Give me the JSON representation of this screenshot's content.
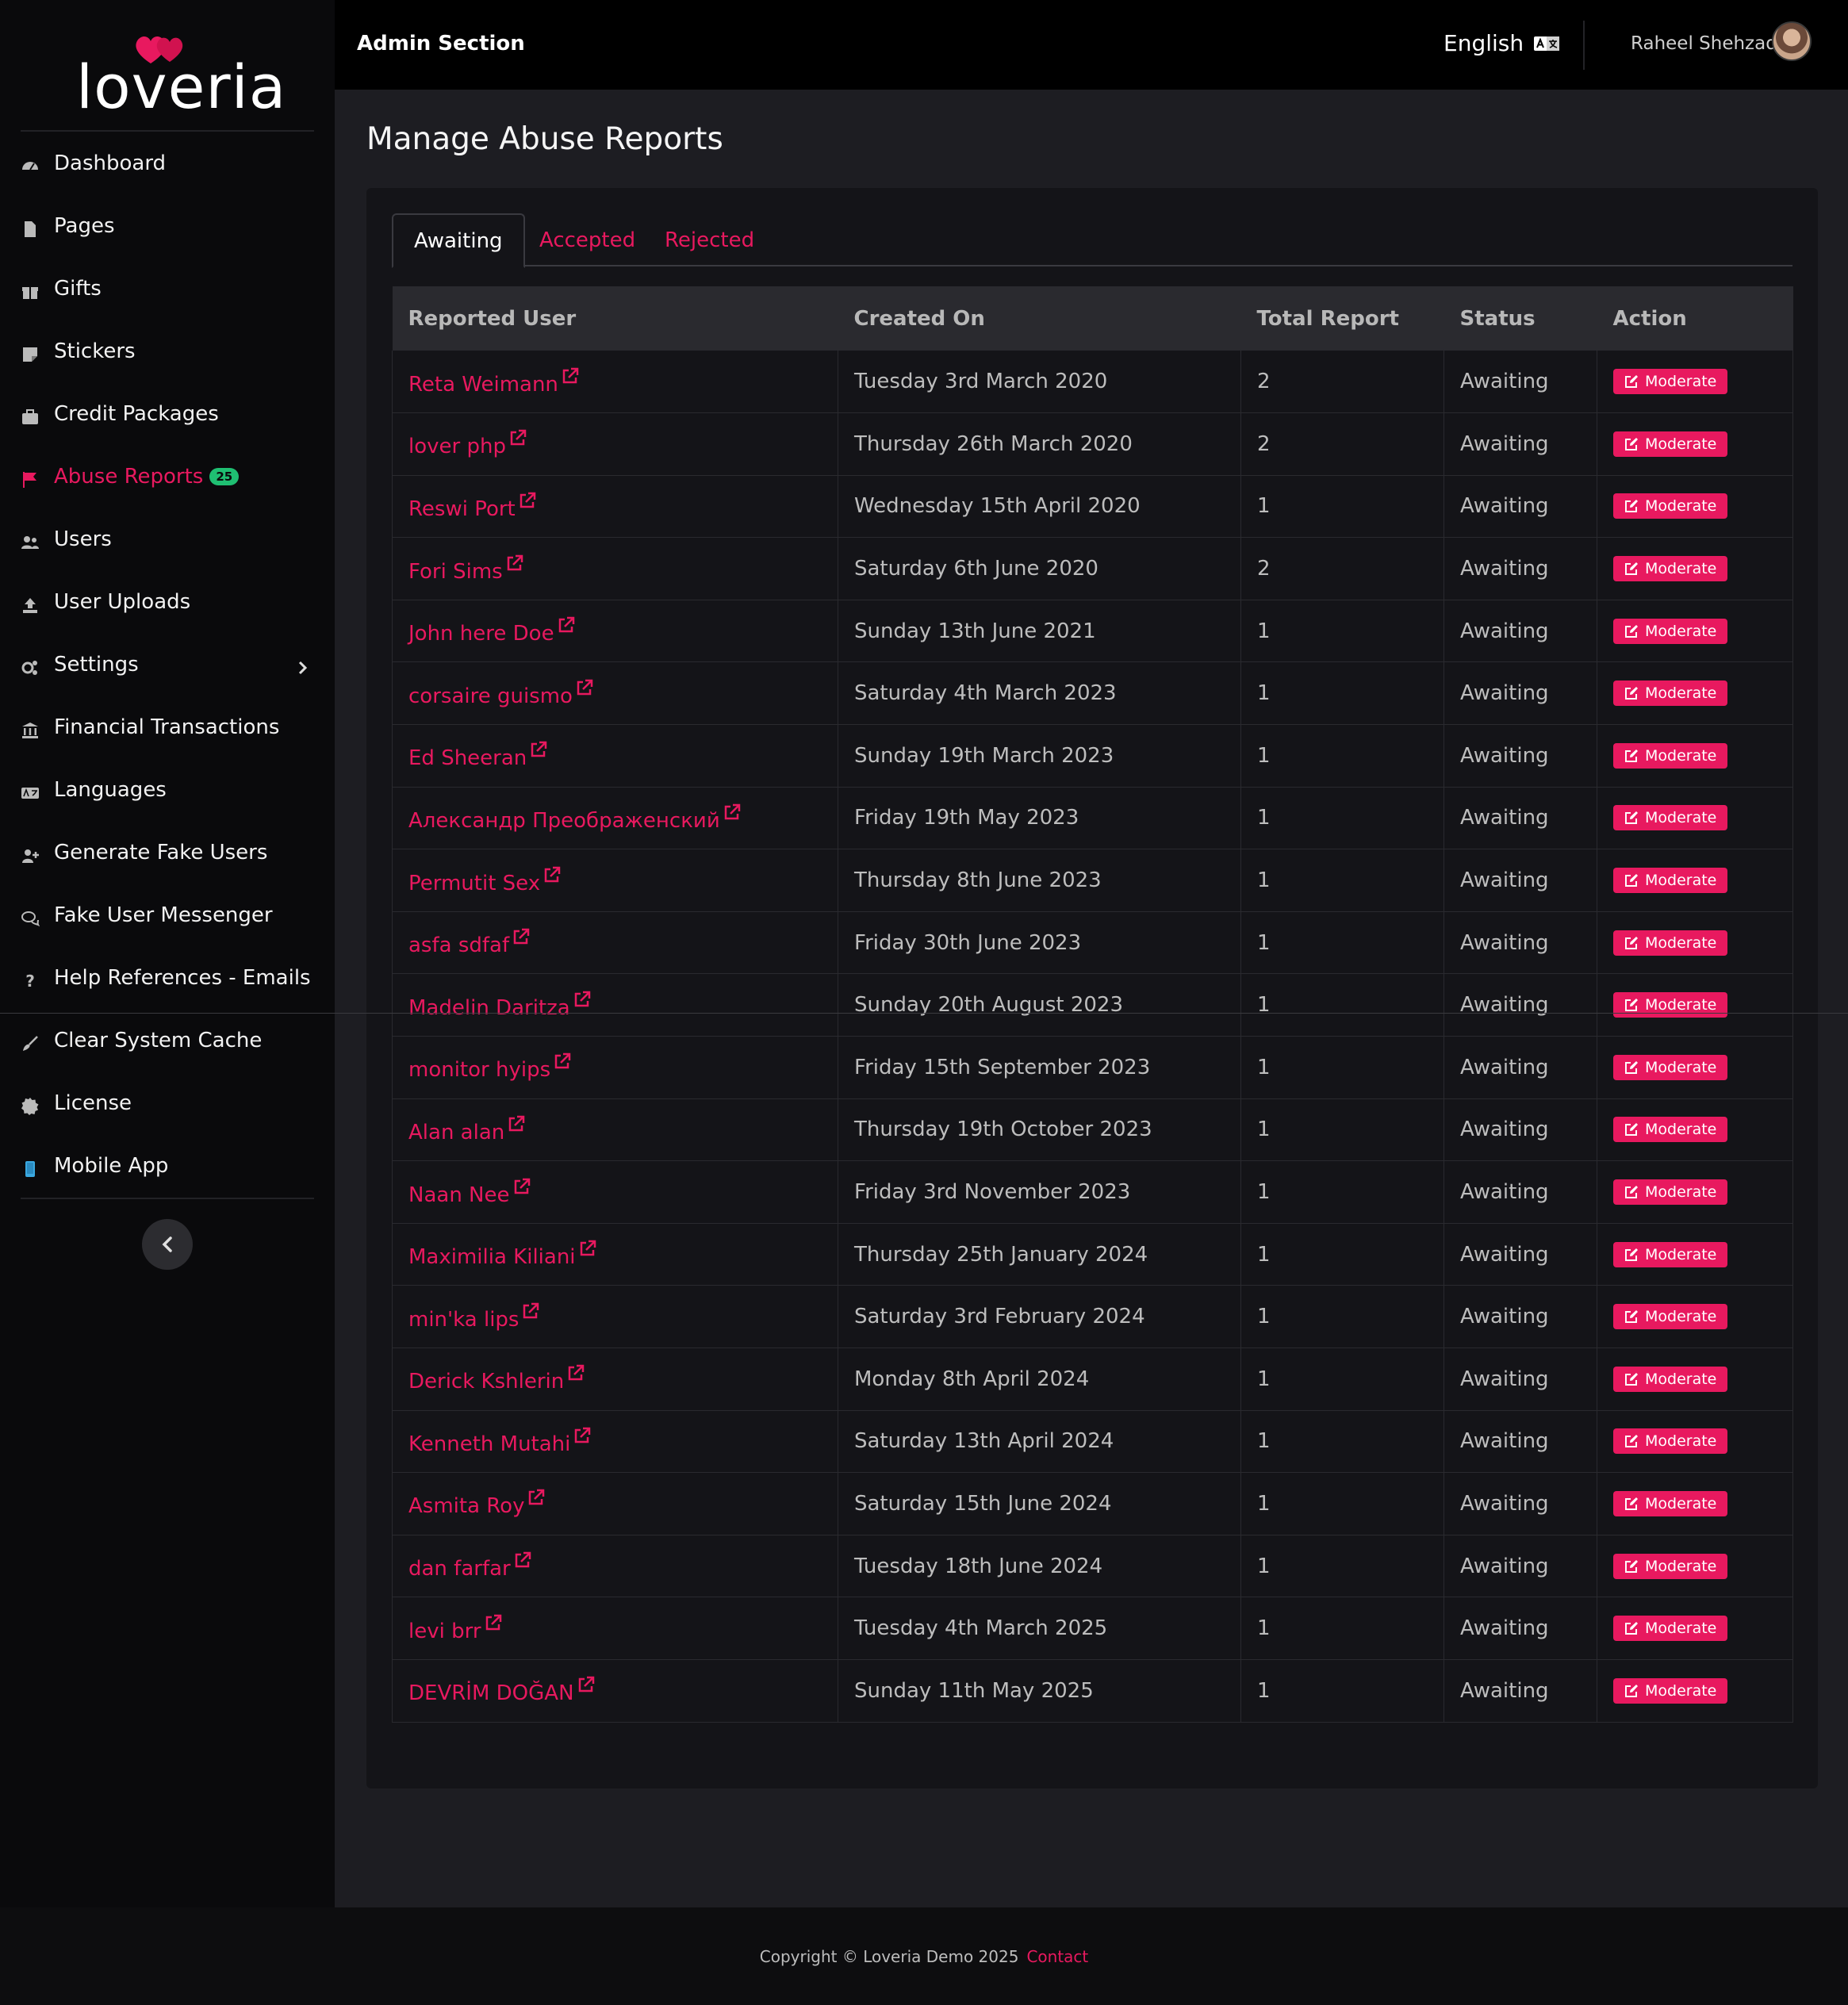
{
  "brand": {
    "name": "loveria",
    "accent": "#e8195f"
  },
  "sidebar": {
    "items": [
      {
        "label": "Dashboard",
        "icon": "dashboard-icon"
      },
      {
        "label": "Pages",
        "icon": "file-icon"
      },
      {
        "label": "Gifts",
        "icon": "gift-icon"
      },
      {
        "label": "Stickers",
        "icon": "sticker-icon"
      },
      {
        "label": "Credit Packages",
        "icon": "briefcase-icon"
      },
      {
        "label": "Abuse Reports",
        "icon": "flag-icon",
        "badge": "25",
        "active": true
      },
      {
        "label": "Users",
        "icon": "users-icon"
      },
      {
        "label": "User Uploads",
        "icon": "upload-icon"
      },
      {
        "label": "Settings",
        "icon": "cogs-icon"
      },
      {
        "label": "Financial Transactions",
        "icon": "bank-icon"
      },
      {
        "label": "Languages",
        "icon": "language-icon"
      },
      {
        "label": "Generate Fake Users",
        "icon": "user-plus-icon"
      },
      {
        "label": "Fake User Messenger",
        "icon": "chat-icon"
      },
      {
        "label": "Help References - Emails",
        "icon": "question-icon"
      },
      {
        "label": "Clear System Cache",
        "icon": "broom-icon"
      },
      {
        "label": "License",
        "icon": "certificate-icon"
      },
      {
        "label": "Mobile App",
        "icon": "mobile-icon"
      }
    ]
  },
  "topbar": {
    "section_title": "Admin Section",
    "language": "English",
    "user_name": "Raheel Shehzad"
  },
  "main": {
    "page_title": "Manage Abuse Reports",
    "tabs": [
      {
        "label": "Awaiting",
        "active": true
      },
      {
        "label": "Accepted"
      },
      {
        "label": "Rejected"
      }
    ],
    "table": {
      "headers": [
        "Reported User",
        "Created On",
        "Total Report",
        "Status",
        "Action"
      ],
      "action_label": "Moderate",
      "rows": [
        {
          "user": "Reta Weimann",
          "created": "Tuesday 3rd March 2020",
          "total": "2",
          "status": "Awaiting"
        },
        {
          "user": "lover php",
          "created": "Thursday 26th March 2020",
          "total": "2",
          "status": "Awaiting"
        },
        {
          "user": "Reswi Port",
          "created": "Wednesday 15th April 2020",
          "total": "1",
          "status": "Awaiting"
        },
        {
          "user": "Fori Sims",
          "created": "Saturday 6th June 2020",
          "total": "2",
          "status": "Awaiting"
        },
        {
          "user": "John here Doe",
          "created": "Sunday 13th June 2021",
          "total": "1",
          "status": "Awaiting"
        },
        {
          "user": "corsaire guismo",
          "created": "Saturday 4th March 2023",
          "total": "1",
          "status": "Awaiting"
        },
        {
          "user": "Ed Sheeran",
          "created": "Sunday 19th March 2023",
          "total": "1",
          "status": "Awaiting"
        },
        {
          "user": "Александр Преображенский",
          "created": "Friday 19th May 2023",
          "total": "1",
          "status": "Awaiting"
        },
        {
          "user": "Permutit Sex",
          "created": "Thursday 8th June 2023",
          "total": "1",
          "status": "Awaiting"
        },
        {
          "user": "asfa sdfaf",
          "created": "Friday 30th June 2023",
          "total": "1",
          "status": "Awaiting"
        },
        {
          "user": "Madelin Daritza",
          "created": "Sunday 20th August 2023",
          "total": "1",
          "status": "Awaiting"
        },
        {
          "user": "monitor hyips",
          "created": "Friday 15th September 2023",
          "total": "1",
          "status": "Awaiting"
        },
        {
          "user": "Alan alan",
          "created": "Thursday 19th October 2023",
          "total": "1",
          "status": "Awaiting"
        },
        {
          "user": "Naan Nee",
          "created": "Friday 3rd November 2023",
          "total": "1",
          "status": "Awaiting"
        },
        {
          "user": "Maximilia Kiliani",
          "created": "Thursday 25th January 2024",
          "total": "1",
          "status": "Awaiting"
        },
        {
          "user": "min'ka lips",
          "created": "Saturday 3rd February 2024",
          "total": "1",
          "status": "Awaiting"
        },
        {
          "user": "Derick Kshlerin",
          "created": "Monday 8th April 2024",
          "total": "1",
          "status": "Awaiting"
        },
        {
          "user": "Kenneth Mutahi",
          "created": "Saturday 13th April 2024",
          "total": "1",
          "status": "Awaiting"
        },
        {
          "user": "Asmita Roy",
          "created": "Saturday 15th June 2024",
          "total": "1",
          "status": "Awaiting"
        },
        {
          "user": "dan farfar",
          "created": "Tuesday 18th June 2024",
          "total": "1",
          "status": "Awaiting"
        },
        {
          "user": "levi brr",
          "created": "Tuesday 4th March 2025",
          "total": "1",
          "status": "Awaiting"
        },
        {
          "user": "DEVRİM DOĞAN",
          "created": "Sunday 11th May 2025",
          "total": "1",
          "status": "Awaiting"
        }
      ]
    }
  },
  "footer": {
    "copyright": "Copyright © Loveria Demo 2025",
    "contact": "Contact"
  }
}
